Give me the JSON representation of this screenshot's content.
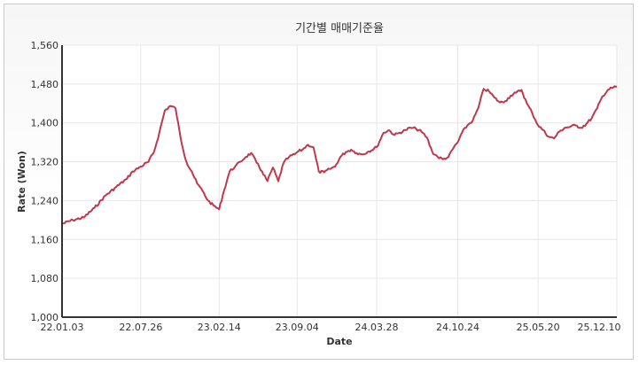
{
  "chart_data": {
    "type": "line",
    "title": "기간별 매매기준율",
    "xlabel": "Date",
    "ylabel": "Rate (Won)",
    "ylim": [
      1000,
      1560
    ],
    "yticks": [
      "1,000",
      "1,080",
      "1,160",
      "1,240",
      "1,320",
      "1,400",
      "1,480",
      "1,560"
    ],
    "xticks": [
      "22.01.03",
      "22.07.26",
      "23.02.14",
      "23.09.04",
      "24.03.28",
      "24.10.24",
      "25.05.20",
      "25.12.10"
    ],
    "grid": true,
    "legend": "none",
    "line_color": "#c0384b",
    "series": [
      {
        "x": [
          "22.01.03",
          "22.01.31",
          "22.02.28",
          "22.03.28",
          "22.04.25",
          "22.05.23",
          "22.06.20",
          "22.07.05",
          "22.07.26",
          "22.08.15",
          "22.08.29",
          "22.09.12",
          "22.09.26",
          "22.10.10",
          "22.10.24",
          "22.11.07",
          "22.11.21",
          "22.12.05",
          "22.12.19",
          "23.01.02",
          "23.01.16",
          "23.01.30",
          "23.02.14",
          "23.02.27",
          "23.03.13",
          "23.03.27",
          "23.04.10",
          "23.04.24",
          "23.05.08",
          "23.05.22",
          "23.06.05",
          "23.06.19",
          "23.07.03",
          "23.07.17",
          "23.07.31",
          "23.08.14",
          "23.08.28",
          "23.09.04",
          "23.09.18",
          "23.10.02",
          "23.10.16",
          "23.10.30",
          "23.11.13",
          "23.11.27",
          "23.12.11",
          "23.12.25",
          "24.01.08",
          "24.01.22",
          "24.02.05",
          "24.02.19",
          "24.03.04",
          "24.03.28",
          "24.04.15",
          "24.04.29",
          "24.05.13",
          "24.05.27",
          "24.06.10",
          "24.06.24",
          "24.07.08",
          "24.07.22",
          "24.08.05",
          "24.08.19",
          "24.09.02",
          "24.09.16",
          "24.09.30",
          "24.10.14",
          "24.10.24",
          "24.11.04",
          "24.11.18",
          "24.12.02",
          "24.12.16",
          "24.12.30",
          "25.01.13",
          "25.01.27",
          "25.02.10",
          "25.02.24",
          "25.03.10",
          "25.03.24",
          "25.04.07",
          "25.04.21",
          "25.05.05",
          "25.05.20",
          "25.06.02",
          "25.06.16",
          "25.06.30",
          "25.07.14",
          "25.07.28",
          "25.08.11",
          "25.08.25",
          "25.09.08",
          "25.09.22",
          "25.10.06",
          "25.10.20",
          "25.11.03",
          "25.11.17",
          "25.12.01",
          "25.12.10"
        ],
        "y": [
          1192,
          1200,
          1205,
          1225,
          1250,
          1268,
          1285,
          1300,
          1310,
          1320,
          1340,
          1380,
          1425,
          1435,
          1430,
          1365,
          1320,
          1300,
          1275,
          1260,
          1240,
          1230,
          1222,
          1262,
          1300,
          1310,
          1320,
          1330,
          1338,
          1318,
          1300,
          1280,
          1308,
          1280,
          1318,
          1330,
          1335,
          1340,
          1345,
          1355,
          1350,
          1300,
          1298,
          1305,
          1310,
          1330,
          1340,
          1345,
          1338,
          1335,
          1340,
          1350,
          1380,
          1385,
          1375,
          1380,
          1385,
          1390,
          1388,
          1382,
          1370,
          1340,
          1330,
          1325,
          1330,
          1350,
          1360,
          1380,
          1395,
          1405,
          1430,
          1470,
          1465,
          1452,
          1442,
          1445,
          1456,
          1462,
          1468,
          1440,
          1420,
          1395,
          1385,
          1372,
          1368,
          1382,
          1390,
          1392,
          1395,
          1390,
          1398,
          1410,
          1430,
          1455,
          1468,
          1473,
          1475
        ]
      }
    ]
  }
}
